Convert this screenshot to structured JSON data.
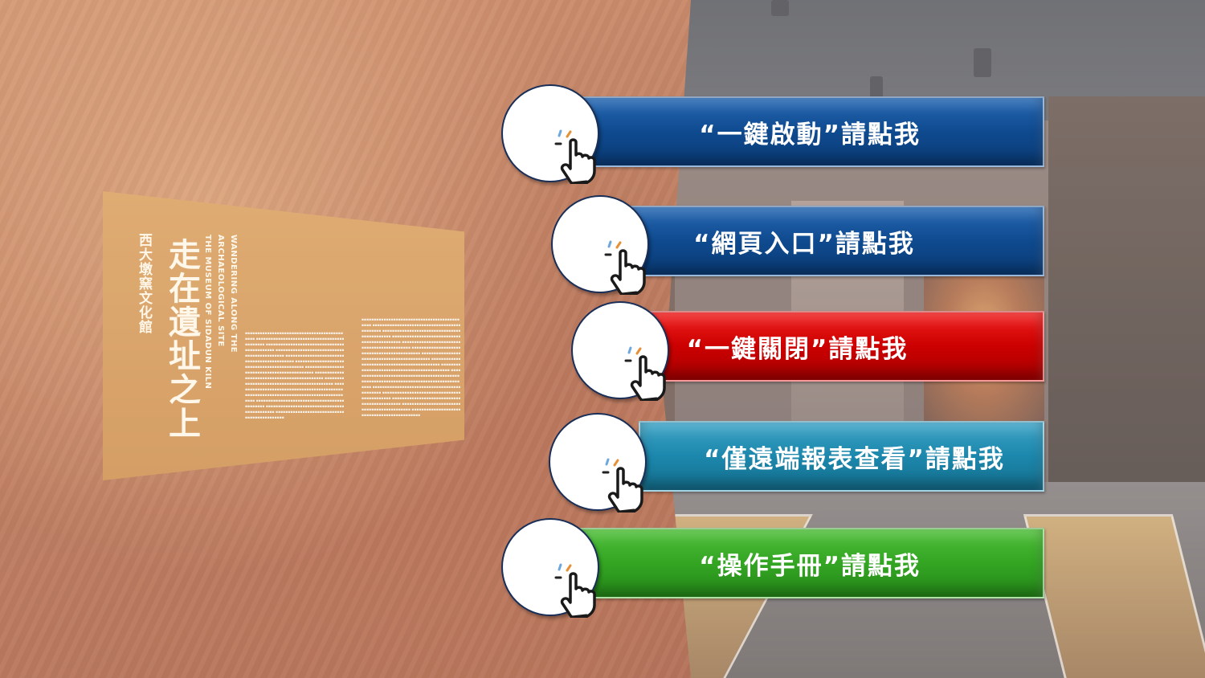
{
  "background": {
    "sign": {
      "title": "走在遺址之上",
      "subtitle_cn": "西大墩窯文化館",
      "subtitle_en_1": "WANDERING ALONG THE ARCHAEOLOGICAL SITE",
      "subtitle_en_2": "THE MUSEUM OF SIDADUN KILN"
    }
  },
  "menu": {
    "buttons": [
      {
        "label": "“一鍵啟動”請點我",
        "color": "#0f4a8f",
        "icon": "tap-hand-icon"
      },
      {
        "label": "“網頁入口”請點我",
        "color": "#0f4a8f",
        "icon": "tap-hand-icon"
      },
      {
        "label": "“一鍵關閉”請點我",
        "color": "#cc0000",
        "icon": "tap-hand-icon"
      },
      {
        "label": "“僅遠端報表查看”請點我",
        "color": "#1c87ac",
        "icon": "tap-hand-icon"
      },
      {
        "label": "“操作手冊”請點我",
        "color": "#33a523",
        "icon": "tap-hand-icon"
      }
    ]
  }
}
